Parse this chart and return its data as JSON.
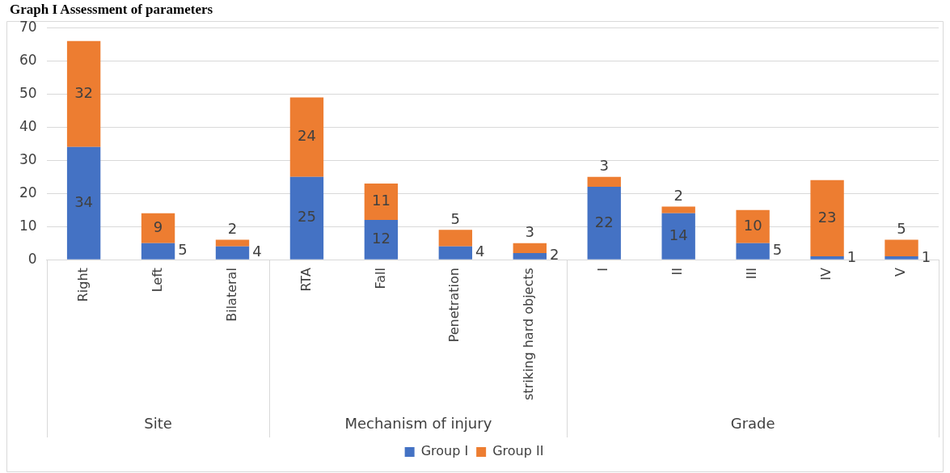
{
  "chart_data": {
    "type": "bar",
    "title": "Graph I Assessment of parameters",
    "stacked": true,
    "categories": [
      "Right",
      "Left",
      "Bilateral",
      "RTA",
      "Fall",
      "Penetration",
      "striking hard objects",
      "I",
      "II",
      "III",
      "IV",
      "V"
    ],
    "series": [
      {
        "name": "Group I",
        "color": "#4472c4",
        "values": [
          34,
          5,
          4,
          25,
          12,
          4,
          2,
          22,
          14,
          5,
          1,
          1
        ]
      },
      {
        "name": "Group II",
        "color": "#ed7d31",
        "values": [
          32,
          9,
          2,
          24,
          11,
          5,
          3,
          3,
          2,
          10,
          23,
          5
        ]
      }
    ],
    "ylim": [
      0,
      70
    ],
    "yticks": [
      0,
      10,
      20,
      30,
      40,
      50,
      60,
      70
    ],
    "grid": "y",
    "legend": "bottom",
    "data_labels": true,
    "annotations": [
      "Site",
      "Mechanism of injury",
      "Grade"
    ]
  }
}
